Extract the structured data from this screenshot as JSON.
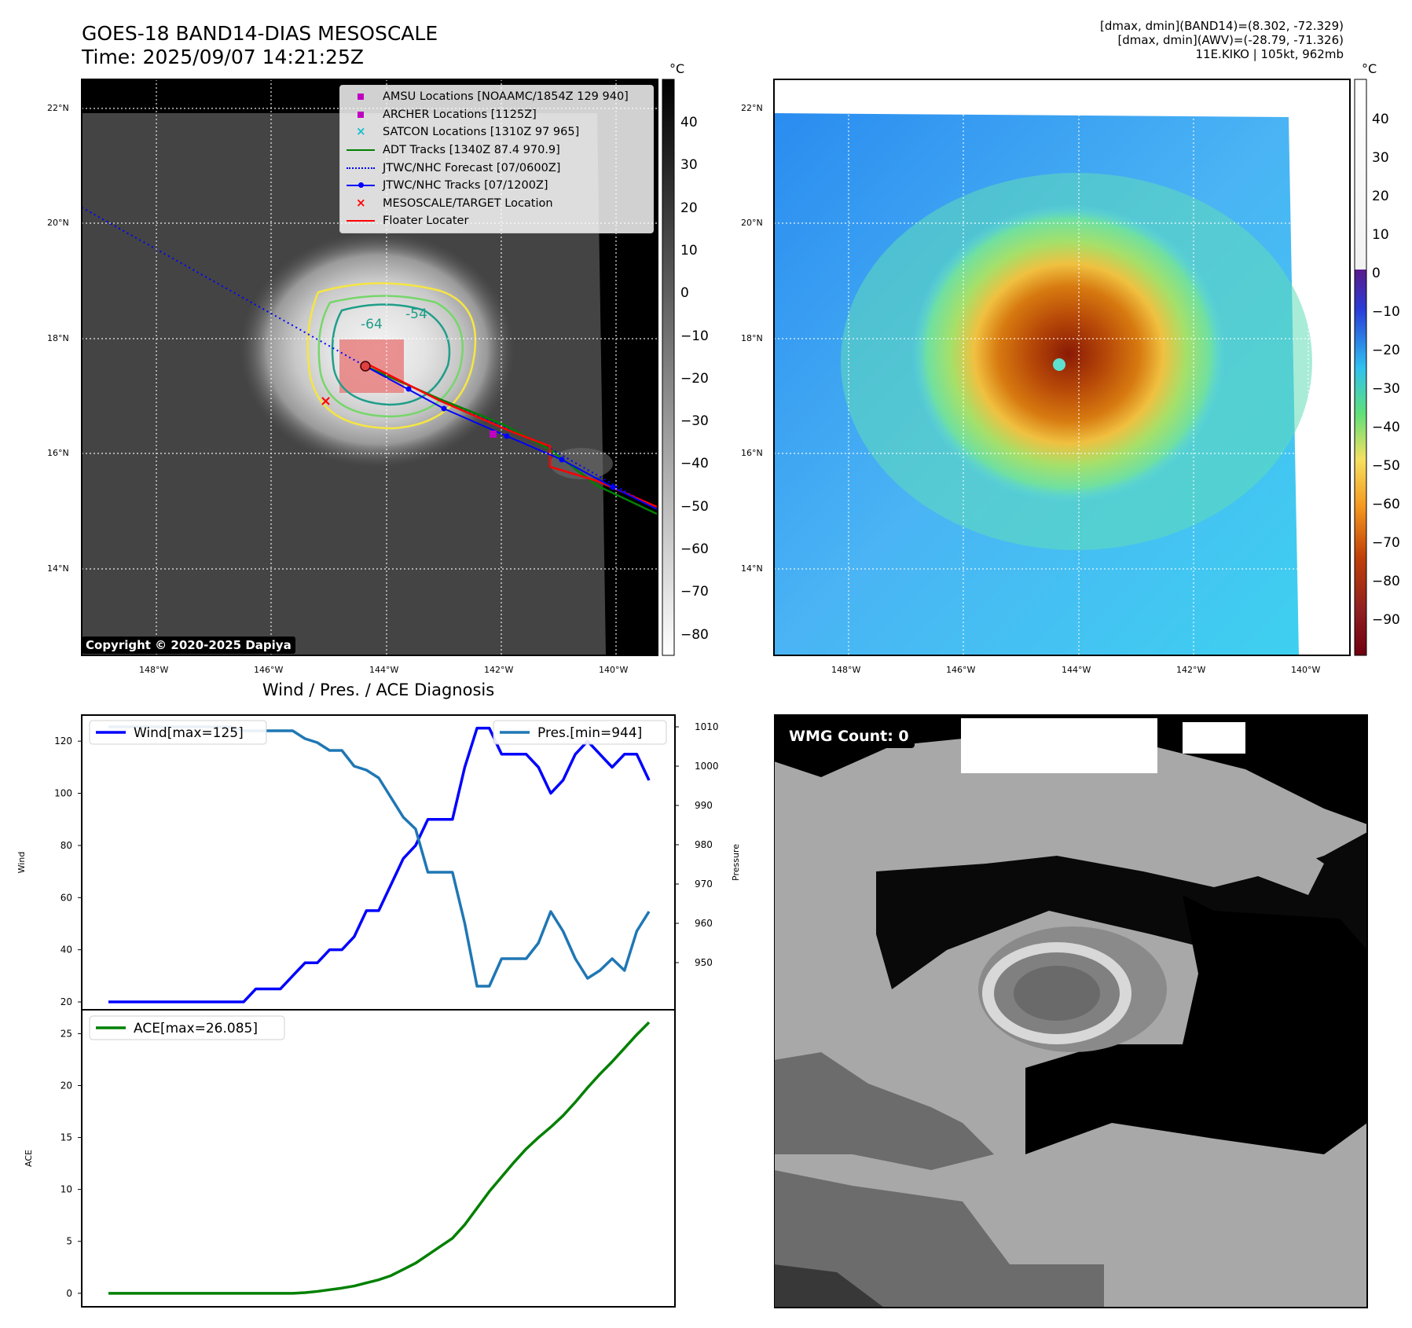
{
  "title": {
    "line1": "GOES-18 BAND14-DIAS MESOSCALE",
    "line2": "Time: 2025/09/07 14:21:25Z"
  },
  "info": {
    "line1": "[dmax, dmin](BAND14)=(8.302, -72.329)",
    "line2": "[dmax, dmin](AWV)=(-28.79, -71.326)",
    "line3": "11E.KIKO | 105kt, 962mb"
  },
  "colors": {
    "wind": "#0000ff",
    "pressure": "#1f77b4",
    "ace": "#008000",
    "adt": "#008000",
    "forecast": "#0000ff",
    "floater": "#ff0000",
    "amsu": "#c000c0",
    "satcon": "#17becf",
    "contour_yellow": "#f5e642",
    "contour_green": "#77d66b",
    "contour_teal": "#1f9e89"
  },
  "maps": {
    "lat_ticks": [
      "22°N",
      "20°N",
      "18°N",
      "16°N",
      "14°N"
    ],
    "lon_ticks": [
      "148°W",
      "146°W",
      "144°W",
      "142°W",
      "140°W"
    ],
    "copyright": "Copyright © 2020-2025 Dapiya",
    "contour_labels": [
      "-64",
      "-54"
    ],
    "left_colorbar": {
      "unit": "°C",
      "ticks": [
        "40",
        "30",
        "20",
        "10",
        "0",
        "−10",
        "−20",
        "−30",
        "−40",
        "−50",
        "−60",
        "−70",
        "−80"
      ]
    },
    "right_colorbar": {
      "unit": "°C",
      "ticks": [
        "40",
        "30",
        "20",
        "10",
        "0",
        "−10",
        "−20",
        "−30",
        "−40",
        "−50",
        "−60",
        "−70",
        "−80",
        "−90"
      ]
    },
    "legend": [
      {
        "label": "AMSU Locations [NOAAMC/1854Z 129 940]",
        "marker": "square",
        "color": "#c000c0"
      },
      {
        "label": "ARCHER Locations [1125Z]",
        "marker": "square",
        "color": "#c000c0"
      },
      {
        "label": "SATCON Locations [1310Z 97 965]",
        "marker": "x",
        "color": "#17becf"
      },
      {
        "label": "ADT Tracks [1340Z 87.4 970.9]",
        "marker": "line",
        "color": "#008000"
      },
      {
        "label": "JTWC/NHC Forecast [07/0600Z]",
        "marker": "dotted",
        "color": "#0000ff"
      },
      {
        "label": "JTWC/NHC Tracks [07/1200Z]",
        "marker": "line-dot",
        "color": "#0000ff"
      },
      {
        "label": "MESOSCALE/TARGET Location",
        "marker": "x",
        "color": "#ff0000"
      },
      {
        "label": "Floater Locater",
        "marker": "line",
        "color": "#ff0000"
      }
    ]
  },
  "wmg": {
    "label": "WMG Count: 0"
  },
  "chart_data": [
    {
      "type": "line",
      "title": "Wind / Pres. / ACE Diagnosis",
      "ylabel": "Wind",
      "ylim": [
        17,
        130
      ],
      "yticks": [
        20,
        40,
        60,
        80,
        100,
        120
      ],
      "legend_placement": "top-left",
      "series": [
        {
          "name": "Wind[max=125]",
          "values": [
            20,
            20,
            20,
            20,
            20,
            20,
            20,
            20,
            20,
            20,
            20,
            20,
            25,
            25,
            25,
            30,
            35,
            35,
            40,
            40,
            45,
            55,
            55,
            65,
            75,
            80,
            90,
            90,
            90,
            110,
            125,
            125,
            115,
            115,
            115,
            110,
            100,
            105,
            115,
            120,
            115,
            110,
            115,
            115,
            105
          ]
        }
      ]
    },
    {
      "type": "line",
      "ylabel": "Pressure",
      "ylim": [
        938,
        1013
      ],
      "yticks": [
        950,
        960,
        970,
        980,
        990,
        1000,
        1010
      ],
      "legend_placement": "top-right",
      "series": [
        {
          "name": "Pres.[min=944]",
          "values": [
            1010,
            1010,
            1010,
            1010,
            1010,
            1010,
            1010,
            1010,
            1010,
            1010,
            1010,
            1009,
            1009,
            1009,
            1009,
            1009,
            1007,
            1006,
            1004,
            1004,
            1000,
            999,
            997,
            992,
            987,
            984,
            973,
            973,
            973,
            960,
            944,
            944,
            951,
            951,
            951,
            955,
            963,
            958,
            951,
            946,
            948,
            951,
            948,
            958,
            963
          ]
        }
      ]
    },
    {
      "type": "line",
      "ylabel": "ACE",
      "ylim": [
        -1.3,
        27.3
      ],
      "yticks": [
        0,
        5,
        10,
        15,
        20,
        25
      ],
      "legend_placement": "top-left",
      "series": [
        {
          "name": "ACE[max=26.085]",
          "values": [
            0,
            0,
            0,
            0,
            0,
            0,
            0,
            0,
            0,
            0,
            0,
            0,
            0,
            0,
            0,
            0,
            0.06,
            0.18,
            0.34,
            0.5,
            0.7,
            1.0,
            1.3,
            1.7,
            2.3,
            2.9,
            3.7,
            4.5,
            5.3,
            6.6,
            8.2,
            9.8,
            11.2,
            12.6,
            13.9,
            15.0,
            16.0,
            17.1,
            18.4,
            19.8,
            21.1,
            22.3,
            23.6,
            24.9,
            26.085
          ]
        }
      ]
    }
  ]
}
